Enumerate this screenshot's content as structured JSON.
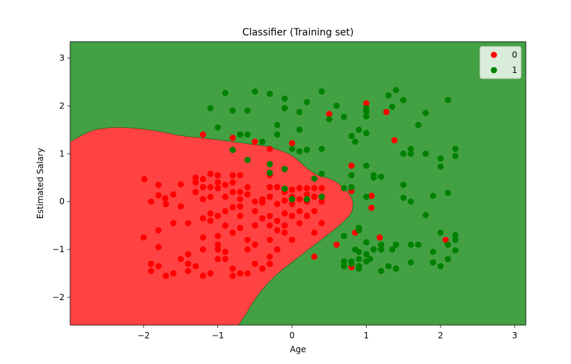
{
  "chart_data": {
    "type": "scatter",
    "title": "Classifier (Training set)",
    "xlabel": "Age",
    "ylabel": "Estimated Salary",
    "xlim": [
      -2.99,
      3.15
    ],
    "ylim": [
      -2.58,
      3.34
    ],
    "xticks": [
      -2,
      -1,
      0,
      1,
      2,
      3
    ],
    "yticks": [
      -2,
      -1,
      0,
      1,
      2,
      3
    ],
    "xtick_labels": [
      "−2",
      "−1",
      "0",
      "1",
      "2",
      "3"
    ],
    "ytick_labels": [
      "−2",
      "−1",
      "0",
      "1",
      "2",
      "3"
    ],
    "grid": false,
    "legend_position": "top-right",
    "background_regions": [
      {
        "label": "1",
        "color": "#43a143",
        "role": "class 1 decision region"
      },
      {
        "label": "0",
        "color": "#ff4242",
        "role": "class 0 decision region"
      }
    ],
    "boundary": [
      [
        -2.99,
        1.25
      ],
      [
        -2.7,
        1.48
      ],
      [
        -2.4,
        1.55
      ],
      [
        -2.1,
        1.53
      ],
      [
        -1.8,
        1.47
      ],
      [
        -1.5,
        1.38
      ],
      [
        -1.2,
        1.33
      ],
      [
        -0.9,
        1.27
      ],
      [
        -0.6,
        1.21
      ],
      [
        -0.3,
        1.14
      ],
      [
        0.0,
        0.96
      ],
      [
        0.2,
        0.7
      ],
      [
        0.35,
        0.55
      ],
      [
        0.55,
        0.45
      ],
      [
        0.7,
        0.28
      ],
      [
        0.8,
        0.08
      ],
      [
        0.82,
        -0.08
      ],
      [
        0.78,
        -0.28
      ],
      [
        0.6,
        -0.55
      ],
      [
        0.35,
        -0.85
      ],
      [
        0.1,
        -1.15
      ],
      [
        -0.15,
        -1.45
      ],
      [
        -0.35,
        -1.75
      ],
      [
        -0.5,
        -2.05
      ],
      [
        -0.62,
        -2.35
      ],
      [
        -0.72,
        -2.58
      ]
    ],
    "series": [
      {
        "name": "0",
        "color": "#ff0000",
        "points": [
          [
            -1.99,
            0.47
          ],
          [
            -1.9,
            0.0
          ],
          [
            -1.8,
            0.35
          ],
          [
            -1.8,
            0.13
          ],
          [
            -1.71,
            0.07
          ],
          [
            -1.7,
            -0.05
          ],
          [
            -1.6,
            0.15
          ],
          [
            -1.5,
            0.36
          ],
          [
            -1.5,
            -0.1
          ],
          [
            -1.3,
            0.4
          ],
          [
            -1.3,
            0.5
          ],
          [
            -1.3,
            0.2
          ],
          [
            -1.2,
            0.3
          ],
          [
            -1.2,
            0.47
          ],
          [
            -1.2,
            0.05
          ],
          [
            -1.1,
            0.58
          ],
          [
            -1.1,
            0.3
          ],
          [
            -1.1,
            0.1
          ],
          [
            -1.0,
            0.55
          ],
          [
            -1.0,
            0.4
          ],
          [
            -1.0,
            0.28
          ],
          [
            -0.9,
            0.35
          ],
          [
            -0.9,
            0.1
          ],
          [
            -0.8,
            0.55
          ],
          [
            -0.8,
            0.4
          ],
          [
            -0.8,
            0.2
          ],
          [
            -0.7,
            0.55
          ],
          [
            -0.7,
            0.2
          ],
          [
            -0.7,
            0.05
          ],
          [
            -0.7,
            -0.1
          ],
          [
            -0.6,
            0.3
          ],
          [
            -0.6,
            0.15
          ],
          [
            -0.5,
            0.0
          ],
          [
            -0.4,
            0.05
          ],
          [
            -0.3,
            0.1
          ],
          [
            -0.3,
            0.3
          ],
          [
            -0.3,
            0.55
          ],
          [
            -0.2,
            0.3
          ],
          [
            -0.1,
            0.2
          ],
          [
            -0.1,
            0.02
          ],
          [
            0.0,
            0.25
          ],
          [
            0.0,
            0.1
          ],
          [
            0.1,
            0.28
          ],
          [
            0.1,
            0.05
          ],
          [
            0.2,
            0.15
          ],
          [
            0.2,
            0.28
          ],
          [
            0.3,
            0.28
          ],
          [
            0.3,
            0.1
          ],
          [
            0.4,
            0.28
          ],
          [
            0.4,
            0.1
          ],
          [
            0.2,
            0.0
          ],
          [
            0.4,
            0.0
          ],
          [
            0.0,
            -0.05
          ],
          [
            -0.2,
            -0.05
          ],
          [
            -0.4,
            -0.02
          ],
          [
            -2.0,
            -0.75
          ],
          [
            -1.8,
            -0.6
          ],
          [
            -1.8,
            -0.95
          ],
          [
            -1.6,
            -0.45
          ],
          [
            -1.4,
            -0.45
          ],
          [
            -1.2,
            -0.35
          ],
          [
            -1.2,
            -0.75
          ],
          [
            -1.1,
            -0.4
          ],
          [
            -1.1,
            -0.25
          ],
          [
            -1.0,
            -0.3
          ],
          [
            -1.0,
            -0.9
          ],
          [
            -0.9,
            -0.2
          ],
          [
            -0.9,
            -0.5
          ],
          [
            -0.8,
            -0.65
          ],
          [
            -0.8,
            -0.12
          ],
          [
            -0.7,
            -0.3
          ],
          [
            -0.7,
            -0.55
          ],
          [
            -0.6,
            -0.8
          ],
          [
            -0.5,
            -0.2
          ],
          [
            -0.5,
            -0.5
          ],
          [
            -0.5,
            -0.9
          ],
          [
            -0.4,
            -0.35
          ],
          [
            -0.3,
            -0.3
          ],
          [
            -0.3,
            -0.5
          ],
          [
            -0.3,
            -0.8
          ],
          [
            -0.2,
            -0.4
          ],
          [
            -0.2,
            -0.6
          ],
          [
            -0.1,
            -0.25
          ],
          [
            -0.1,
            -0.5
          ],
          [
            0.0,
            -0.3
          ],
          [
            0.0,
            -0.8
          ],
          [
            0.1,
            -0.45
          ],
          [
            0.2,
            -0.3
          ],
          [
            0.3,
            -0.2
          ],
          [
            0.3,
            -0.65
          ],
          [
            0.4,
            -0.45
          ],
          [
            0.1,
            -0.2
          ],
          [
            -0.1,
            -0.65
          ],
          [
            -0.2,
            -1.0
          ],
          [
            -1.9,
            -1.3
          ],
          [
            -1.9,
            -1.45
          ],
          [
            -1.8,
            -1.35
          ],
          [
            -1.7,
            -1.55
          ],
          [
            -1.6,
            -1.5
          ],
          [
            -1.5,
            -1.2
          ],
          [
            -1.4,
            -1.1
          ],
          [
            -1.4,
            -1.3
          ],
          [
            -1.4,
            -1.45
          ],
          [
            -1.3,
            -1.35
          ],
          [
            -1.2,
            -1.55
          ],
          [
            -1.2,
            -1.0
          ],
          [
            -1.1,
            -1.5
          ],
          [
            -1.0,
            -1.2
          ],
          [
            -1.0,
            -1.0
          ],
          [
            -0.9,
            -1.05
          ],
          [
            -0.9,
            -1.2
          ],
          [
            -0.8,
            -1.4
          ],
          [
            -0.8,
            -1.55
          ],
          [
            -0.7,
            -1.5
          ],
          [
            -0.6,
            -1.5
          ],
          [
            -0.5,
            -1.3
          ],
          [
            -0.4,
            -1.4
          ],
          [
            -0.3,
            -1.15
          ],
          [
            -0.3,
            -1.3
          ],
          [
            -0.2,
            -1.0
          ],
          [
            0.3,
            -1.15
          ],
          [
            -1.0,
            -0.72
          ],
          [
            -0.6,
            -1.0
          ],
          [
            -1.2,
            1.4
          ],
          [
            -0.8,
            1.33
          ],
          [
            -0.5,
            1.25
          ],
          [
            -0.3,
            1.1
          ],
          [
            0.0,
            1.22
          ],
          [
            0.5,
            1.83
          ],
          [
            1.0,
            2.05
          ],
          [
            1.27,
            1.87
          ],
          [
            1.38,
            1.28
          ],
          [
            0.8,
            0.75
          ],
          [
            0.8,
            0.22
          ],
          [
            1.07,
            0.12
          ],
          [
            1.07,
            -0.13
          ],
          [
            0.85,
            -0.65
          ],
          [
            0.6,
            -0.9
          ],
          [
            1.18,
            -0.75
          ],
          [
            2.07,
            -0.8
          ],
          [
            0.8,
            -1.37
          ]
        ]
      },
      {
        "name": "1",
        "color": "#008000",
        "points": [
          [
            -1.1,
            1.95
          ],
          [
            -1.0,
            1.55
          ],
          [
            -0.9,
            2.27
          ],
          [
            -0.8,
            1.08
          ],
          [
            -0.8,
            1.9
          ],
          [
            -0.7,
            1.4
          ],
          [
            -0.6,
            1.9
          ],
          [
            -0.6,
            1.4
          ],
          [
            -0.6,
            0.87
          ],
          [
            -0.5,
            2.3
          ],
          [
            -0.4,
            1.25
          ],
          [
            -0.3,
            2.25
          ],
          [
            -0.2,
            1.6
          ],
          [
            -0.2,
            1.4
          ],
          [
            -0.3,
            0.78
          ],
          [
            -0.3,
            0.6
          ],
          [
            -0.1,
            2.15
          ],
          [
            -0.1,
            1.95
          ],
          [
            0.0,
            1.1
          ],
          [
            0.1,
            1.87
          ],
          [
            0.1,
            1.5
          ],
          [
            0.1,
            1.05
          ],
          [
            0.2,
            2.08
          ],
          [
            0.2,
            1.08
          ],
          [
            0.3,
            0.48
          ],
          [
            0.4,
            2.3
          ],
          [
            0.4,
            1.1
          ],
          [
            0.4,
            0.58
          ],
          [
            0.5,
            1.72
          ],
          [
            0.6,
            2.0
          ],
          [
            0.7,
            1.77
          ],
          [
            0.8,
            1.37
          ],
          [
            0.85,
            1.25
          ],
          [
            0.9,
            1.5
          ],
          [
            1.0,
            1.95
          ],
          [
            1.0,
            1.88
          ],
          [
            1.0,
            1.78
          ],
          [
            1.0,
            1.43
          ],
          [
            1.0,
            0.75
          ],
          [
            1.1,
            0.55
          ],
          [
            1.1,
            0.5
          ],
          [
            1.2,
            0.52
          ],
          [
            1.3,
            2.22
          ],
          [
            1.35,
            1.98
          ],
          [
            1.4,
            2.33
          ],
          [
            1.5,
            2.12
          ],
          [
            1.5,
            1.0
          ],
          [
            1.6,
            1.1
          ],
          [
            1.6,
            1.0
          ],
          [
            1.7,
            1.6
          ],
          [
            1.8,
            1.85
          ],
          [
            1.8,
            1.0
          ],
          [
            2.0,
            0.9
          ],
          [
            2.0,
            0.73
          ],
          [
            2.1,
            2.12
          ],
          [
            2.2,
            1.1
          ],
          [
            2.2,
            0.95
          ],
          [
            2.1,
            0.18
          ],
          [
            1.9,
            0.12
          ],
          [
            1.5,
            0.35
          ],
          [
            1.5,
            0.08
          ],
          [
            1.6,
            0.0
          ],
          [
            1.0,
            0.1
          ],
          [
            0.8,
            0.55
          ],
          [
            0.8,
            0.3
          ],
          [
            0.7,
            0.28
          ],
          [
            0.4,
            0.1
          ],
          [
            0.2,
            0.05
          ],
          [
            0.0,
            0.05
          ],
          [
            -0.1,
            0.27
          ],
          [
            -0.1,
            0.68
          ],
          [
            1.8,
            -0.28
          ],
          [
            0.9,
            -0.55
          ],
          [
            0.9,
            -0.6
          ],
          [
            1.0,
            -0.85
          ],
          [
            1.1,
            -1.0
          ],
          [
            1.2,
            -0.9
          ],
          [
            1.4,
            -0.9
          ],
          [
            1.6,
            -0.9
          ],
          [
            1.7,
            -0.9
          ],
          [
            1.9,
            -1.05
          ],
          [
            2.0,
            -0.65
          ],
          [
            2.1,
            -0.9
          ],
          [
            2.2,
            -0.7
          ],
          [
            2.2,
            -0.8
          ],
          [
            2.2,
            -1.02
          ],
          [
            0.7,
            -1.25
          ],
          [
            0.7,
            -1.35
          ],
          [
            0.7,
            -0.72
          ],
          [
            0.8,
            -1.25
          ],
          [
            0.8,
            -1.3
          ],
          [
            0.9,
            -1.05
          ],
          [
            0.9,
            -1.2
          ],
          [
            0.9,
            -1.4
          ],
          [
            1.0,
            -1.1
          ],
          [
            1.0,
            -1.25
          ],
          [
            1.1,
            -1.0
          ],
          [
            1.2,
            -1.45
          ],
          [
            1.3,
            -1.35
          ],
          [
            1.4,
            -1.4
          ],
          [
            1.6,
            -1.27
          ],
          [
            1.9,
            -1.27
          ],
          [
            2.0,
            -1.35
          ],
          [
            2.1,
            -1.2
          ],
          [
            0.9,
            -1.35
          ],
          [
            0.85,
            -1.0
          ],
          [
            1.05,
            -1.2
          ],
          [
            1.2,
            -1.0
          ],
          [
            1.35,
            -1.0
          ]
        ]
      }
    ]
  }
}
